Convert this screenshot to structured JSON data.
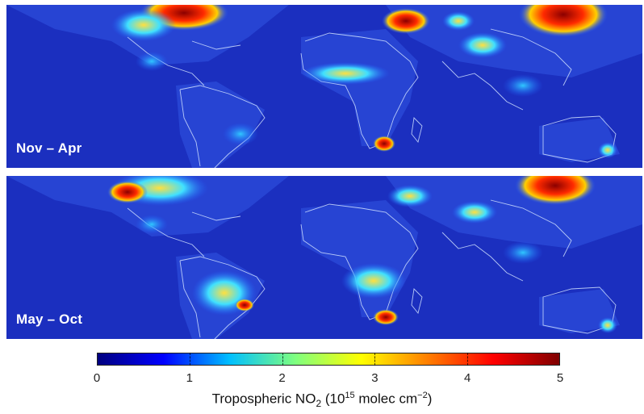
{
  "panels": [
    {
      "label": "Nov – Apr"
    },
    {
      "label": "May – Oct"
    }
  ],
  "colorbar": {
    "ticks": [
      "0",
      "1",
      "2",
      "3",
      "4",
      "5"
    ],
    "min": 0,
    "max": 5,
    "title_main": "Tropospheric NO",
    "title_sub": "2",
    "title_mid": " (10",
    "title_exp": "15",
    "title_unit": " molec cm",
    "title_exp2": "−2",
    "title_end": ")",
    "colors": [
      "#00007f",
      "#0000ff",
      "#00bfff",
      "#7fff7f",
      "#ffff00",
      "#ff7f00",
      "#ff0000",
      "#7f0000"
    ]
  }
}
